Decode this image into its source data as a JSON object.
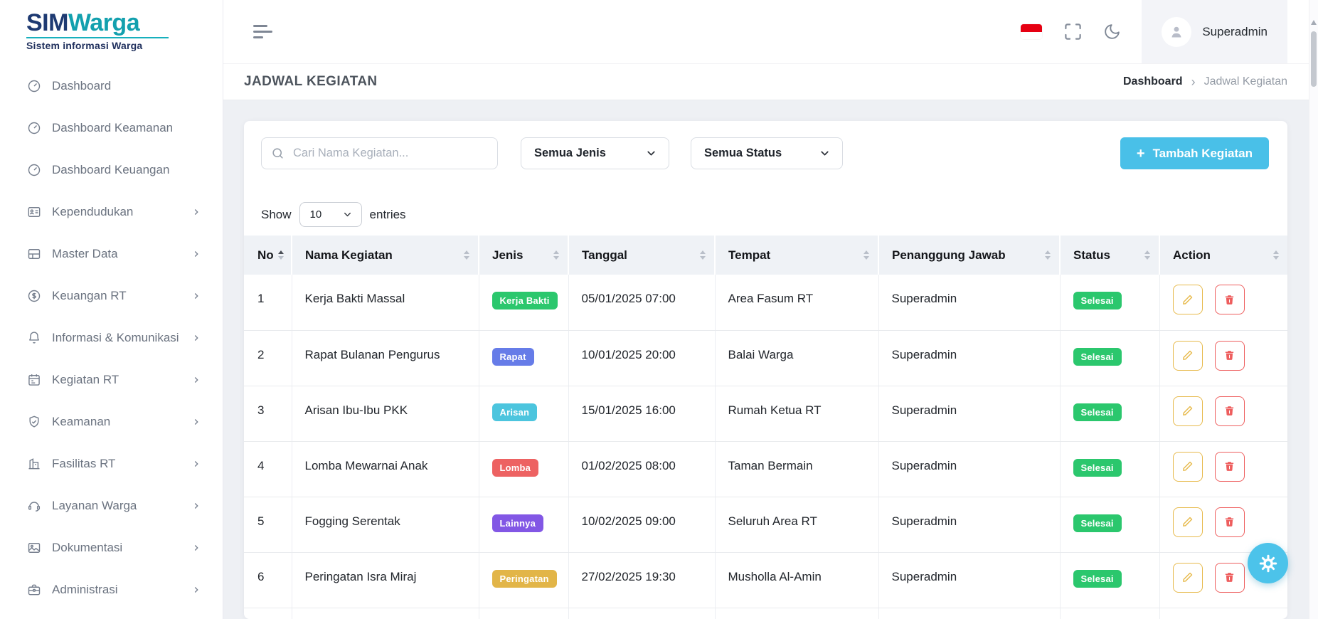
{
  "brand": {
    "name_primary": "SIM",
    "name_secondary": "Warga",
    "tagline": "Sistem informasi Warga"
  },
  "topbar": {
    "user_name": "Superadmin",
    "icon_names": [
      "hamburger-menu-icon",
      "indonesia-flag-icon",
      "fullscreen-icon",
      "dark-mode-moon-icon",
      "user-avatar-icon"
    ]
  },
  "sidebar": {
    "items": [
      {
        "label": "Dashboard",
        "icon": "gauge-icon",
        "expandable": false
      },
      {
        "label": "Dashboard Keamanan",
        "icon": "gauge-icon",
        "expandable": false
      },
      {
        "label": "Dashboard Keuangan",
        "icon": "gauge-icon",
        "expandable": false
      },
      {
        "label": "Kependudukan",
        "icon": "id-card-icon",
        "expandable": true
      },
      {
        "label": "Master Data",
        "icon": "layout-icon",
        "expandable": true
      },
      {
        "label": "Keuangan RT",
        "icon": "dollar-circle-icon",
        "expandable": true
      },
      {
        "label": "Informasi & Komunikasi",
        "icon": "bell-icon",
        "expandable": true
      },
      {
        "label": "Kegiatan RT",
        "icon": "calendar-icon",
        "expandable": true
      },
      {
        "label": "Keamanan",
        "icon": "shield-check-icon",
        "expandable": true
      },
      {
        "label": "Fasilitas RT",
        "icon": "building-icon",
        "expandable": true
      },
      {
        "label": "Layanan Warga",
        "icon": "headset-icon",
        "expandable": true
      },
      {
        "label": "Dokumentasi",
        "icon": "image-icon",
        "expandable": true
      },
      {
        "label": "Administrasi",
        "icon": "briefcase-icon",
        "expandable": true
      }
    ]
  },
  "page": {
    "title": "JADWAL KEGIATAN",
    "breadcrumb_root": "Dashboard",
    "breadcrumb_separator": "›",
    "breadcrumb_current": "Jadwal Kegiatan"
  },
  "filters": {
    "search_placeholder": "Cari Nama Kegiatan...",
    "jenis_value": "Semua Jenis",
    "status_value": "Semua Status",
    "add_button_label": "Tambah Kegiatan",
    "add_button_plus": "+",
    "show_label": "Show",
    "entries_label": "entries",
    "page_size_value": "10"
  },
  "table": {
    "columns": [
      "No",
      "Nama Kegiatan",
      "Jenis",
      "Tanggal",
      "Tempat",
      "Penanggung Jawab",
      "Status",
      "Action"
    ],
    "rows": [
      {
        "no": "1",
        "nama": "Kerja Bakti Massal",
        "jenis": "Kerja Bakti",
        "jenis_color": "#2bc76d",
        "tanggal": "05/01/2025 07:00",
        "tempat": "Area Fasum RT",
        "penanggung_jawab": "Superadmin",
        "status": "Selesai"
      },
      {
        "no": "2",
        "nama": "Rapat Bulanan Pengurus",
        "jenis": "Rapat",
        "jenis_color": "#667ce8",
        "tanggal": "10/01/2025 20:00",
        "tempat": "Balai Warga",
        "penanggung_jawab": "Superadmin",
        "status": "Selesai"
      },
      {
        "no": "3",
        "nama": "Arisan Ibu-Ibu PKK",
        "jenis": "Arisan",
        "jenis_color": "#4cc5de",
        "tanggal": "15/01/2025 16:00",
        "tempat": "Rumah Ketua RT",
        "penanggung_jawab": "Superadmin",
        "status": "Selesai"
      },
      {
        "no": "4",
        "nama": "Lomba Mewarnai Anak",
        "jenis": "Lomba",
        "jenis_color": "#ed6262",
        "tanggal": "01/02/2025 08:00",
        "tempat": "Taman Bermain",
        "penanggung_jawab": "Superadmin",
        "status": "Selesai"
      },
      {
        "no": "5",
        "nama": "Fogging Serentak",
        "jenis": "Lainnya",
        "jenis_color": "#8257e5",
        "tanggal": "10/02/2025 09:00",
        "tempat": "Seluruh Area RT",
        "penanggung_jawab": "Superadmin",
        "status": "Selesai"
      },
      {
        "no": "6",
        "nama": "Peringatan Isra Miraj",
        "jenis": "Peringatan",
        "jenis_color": "#e2b548",
        "tanggal": "27/02/2025 19:30",
        "tempat": "Musholla Al-Amin",
        "penanggung_jawab": "Superadmin",
        "status": "Selesai"
      }
    ]
  },
  "colors": {
    "accent_cyan": "#49c0e8",
    "status_green": "#2bc76d",
    "edit_amber": "#e7ba4c",
    "delete_red": "#ee5e5e",
    "flag_red": "#e60012",
    "brand_navy": "#1e3a72",
    "brand_teal": "#13a0ae"
  }
}
